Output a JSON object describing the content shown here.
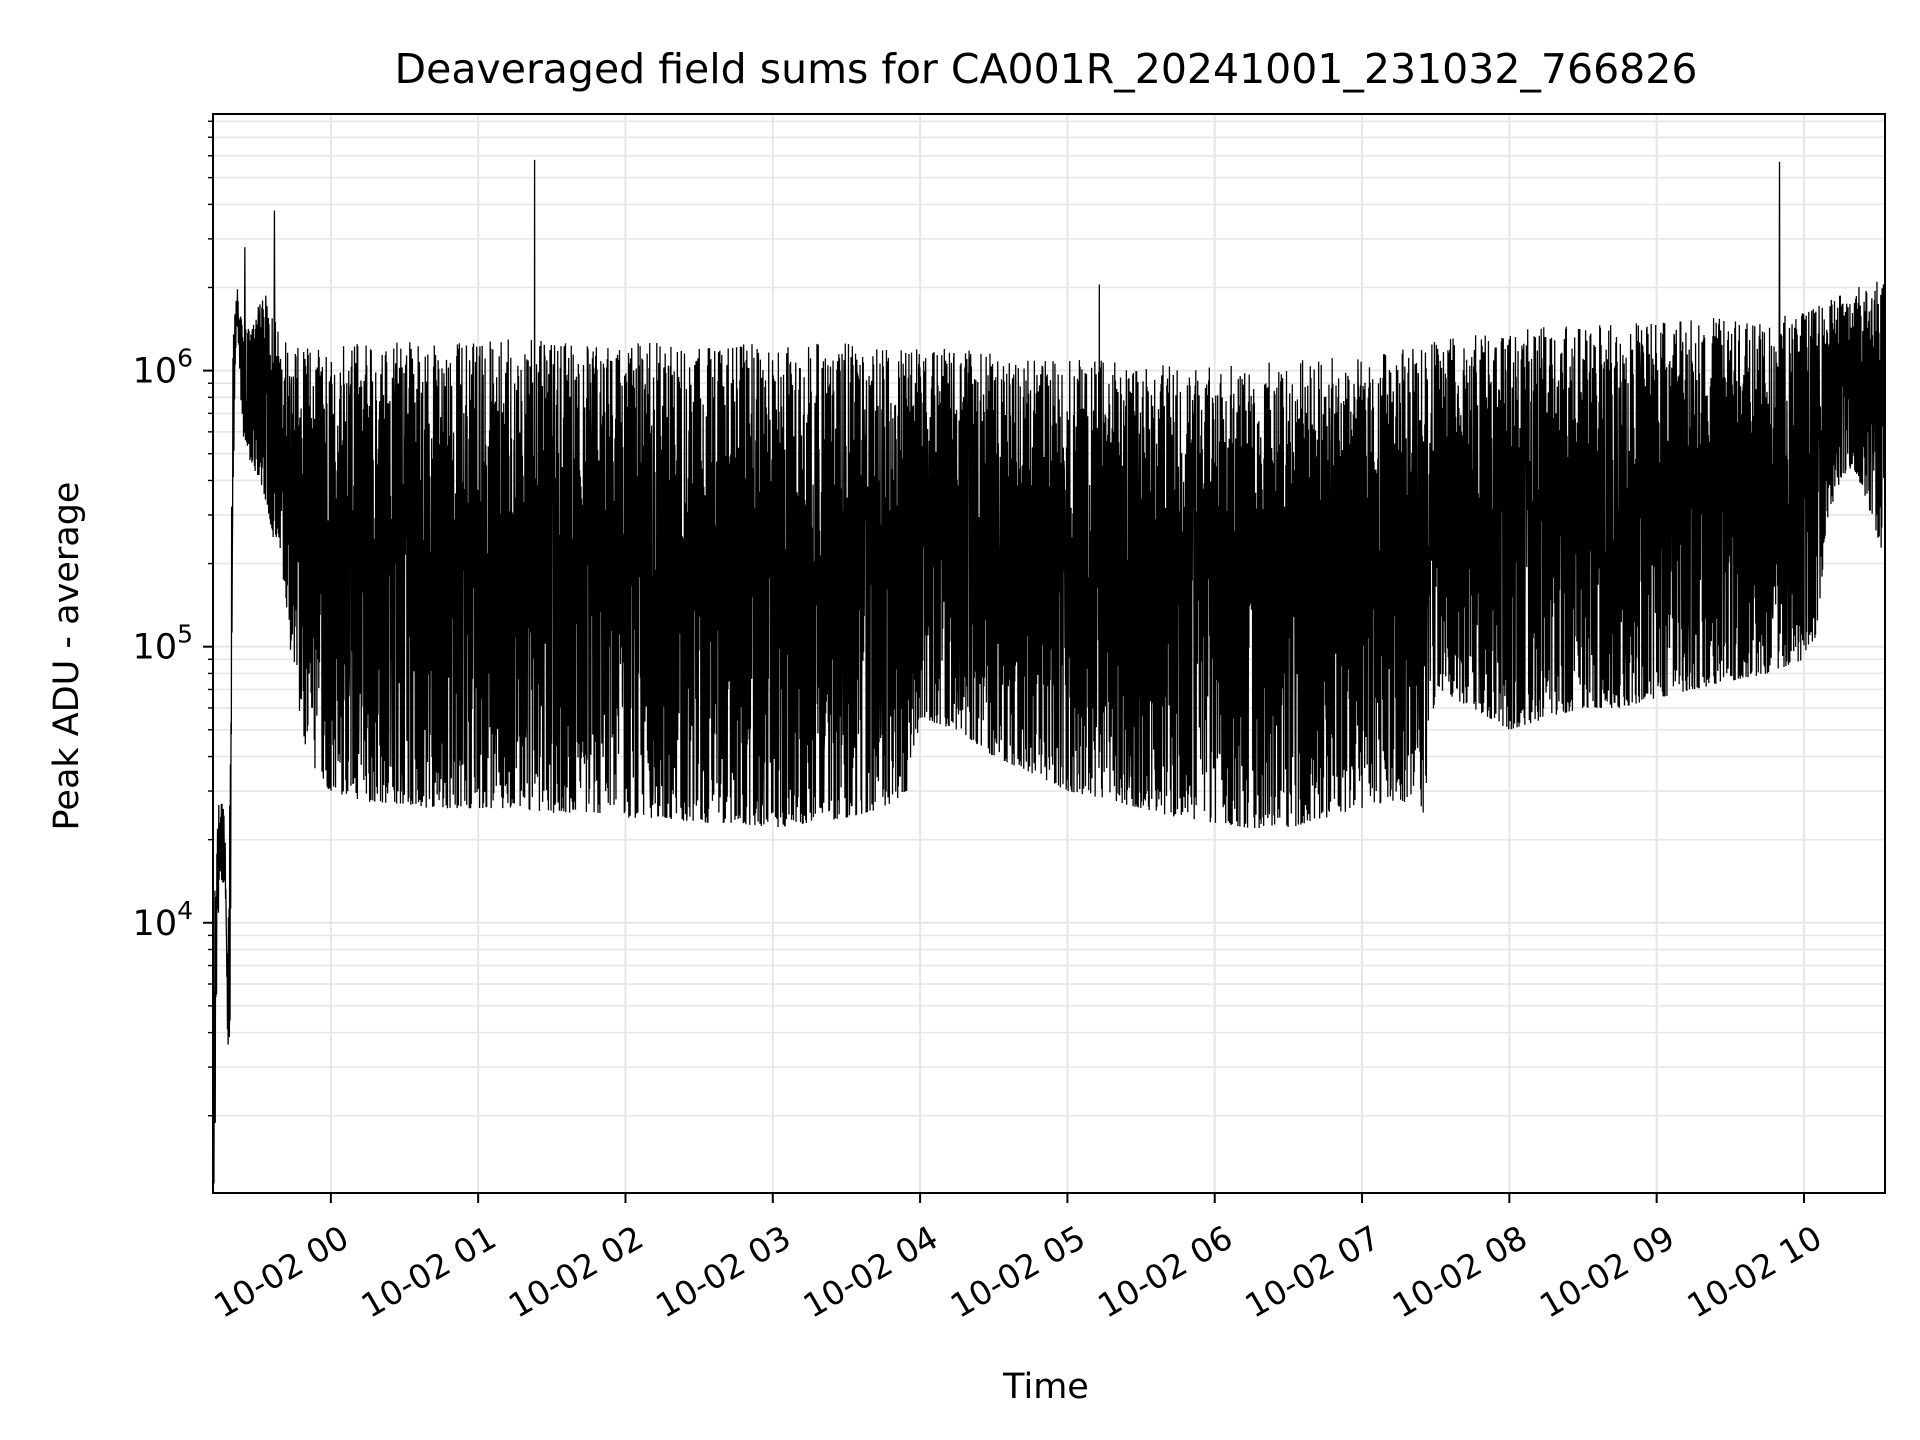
{
  "chart_data": {
    "type": "line",
    "title": "Deaveraged field sums for CA001R_20241001_231032_766826",
    "xlabel": "Time",
    "ylabel": "Peak ADU - average",
    "yscale": "log",
    "grid": true,
    "legend": "none",
    "line_color": "#000000",
    "xlim": [
      "2024-10-01 23:12",
      "2024-10-02 10:33"
    ],
    "ylim": [
      1050,
      8500000
    ],
    "xticks": [
      {
        "time": "2024-10-02 00:00",
        "label": "10-02 00"
      },
      {
        "time": "2024-10-02 01:00",
        "label": "10-02 01"
      },
      {
        "time": "2024-10-02 02:00",
        "label": "10-02 02"
      },
      {
        "time": "2024-10-02 03:00",
        "label": "10-02 03"
      },
      {
        "time": "2024-10-02 04:00",
        "label": "10-02 04"
      },
      {
        "time": "2024-10-02 05:00",
        "label": "10-02 05"
      },
      {
        "time": "2024-10-02 06:00",
        "label": "10-02 06"
      },
      {
        "time": "2024-10-02 07:00",
        "label": "10-02 07"
      },
      {
        "time": "2024-10-02 08:00",
        "label": "10-02 08"
      },
      {
        "time": "2024-10-02 09:00",
        "label": "10-02 09"
      },
      {
        "time": "2024-10-02 10:00",
        "label": "10-02 10"
      }
    ],
    "yticks": [
      {
        "value": 10000,
        "base": "10",
        "exp": "4"
      },
      {
        "value": 100000,
        "base": "10",
        "exp": "5"
      },
      {
        "value": 1000000,
        "base": "10",
        "exp": "6"
      }
    ],
    "series": [
      {
        "x": [
          "2024-10-01 23:12",
          "2024-10-01 23:13",
          "2024-10-01 23:14",
          "2024-10-01 23:15",
          "2024-10-01 23:16",
          "2024-10-01 23:17",
          "2024-10-01 23:18",
          "2024-10-01 23:19",
          "2024-10-01 23:20",
          "2024-10-01 23:21",
          "2024-10-01 23:22",
          "2024-10-01 23:23",
          "2024-10-01 23:24",
          "2024-10-01 23:26",
          "2024-10-01 23:28",
          "2024-10-01 23:30",
          "2024-10-01 23:32",
          "2024-10-01 23:34",
          "2024-10-01 23:36",
          "2024-10-01 23:38",
          "2024-10-01 23:40",
          "2024-10-01 23:42",
          "2024-10-01 23:44",
          "2024-10-01 23:46",
          "2024-10-01 23:48",
          "2024-10-01 23:50",
          "2024-10-01 23:52",
          "2024-10-01 23:54",
          "2024-10-01 23:56",
          "2024-10-01 23:58",
          "2024-10-02 00:00",
          "2024-10-02 00:10",
          "2024-10-02 00:20",
          "2024-10-02 00:30",
          "2024-10-02 00:40",
          "2024-10-02 00:50",
          "2024-10-02 01:00",
          "2024-10-02 01:15",
          "2024-10-02 01:30",
          "2024-10-02 01:45",
          "2024-10-02 02:00",
          "2024-10-02 02:15",
          "2024-10-02 02:30",
          "2024-10-02 02:45",
          "2024-10-02 03:00",
          "2024-10-02 03:15",
          "2024-10-02 03:30",
          "2024-10-02 03:45",
          "2024-10-02 03:55",
          "2024-10-02 04:00",
          "2024-10-02 04:15",
          "2024-10-02 04:30",
          "2024-10-02 04:45",
          "2024-10-02 05:00",
          "2024-10-02 05:15",
          "2024-10-02 05:30",
          "2024-10-02 05:45",
          "2024-10-02 06:00",
          "2024-10-02 06:15",
          "2024-10-02 06:30",
          "2024-10-02 06:45",
          "2024-10-02 07:00",
          "2024-10-02 07:15",
          "2024-10-02 07:25",
          "2024-10-02 07:30",
          "2024-10-02 07:45",
          "2024-10-02 08:00",
          "2024-10-02 08:15",
          "2024-10-02 08:30",
          "2024-10-02 08:45",
          "2024-10-02 09:00",
          "2024-10-02 09:15",
          "2024-10-02 09:30",
          "2024-10-02 09:45",
          "2024-10-02 10:00",
          "2024-10-02 10:05",
          "2024-10-02 10:10",
          "2024-10-02 10:15",
          "2024-10-02 10:20",
          "2024-10-02 10:25",
          "2024-10-02 10:30",
          "2024-10-02 10:33"
        ],
        "lows": [
          1100,
          1150,
          9500,
          13000,
          14000,
          13500,
          3500,
          4000,
          250000,
          1000000,
          1500000,
          900000,
          600000,
          500000,
          450000,
          420000,
          380000,
          320000,
          260000,
          220000,
          180000,
          130000,
          90000,
          70000,
          50000,
          42000,
          38000,
          35000,
          33000,
          31000,
          30000,
          28000,
          27000,
          27000,
          26000,
          26000,
          26000,
          26000,
          25000,
          25000,
          24000,
          24000,
          23000,
          23000,
          22000,
          23000,
          24000,
          26000,
          30000,
          55000,
          50000,
          40000,
          35000,
          30000,
          28000,
          26000,
          24000,
          23000,
          22000,
          22000,
          24000,
          26000,
          28000,
          25000,
          70000,
          60000,
          50000,
          55000,
          60000,
          60000,
          65000,
          70000,
          75000,
          80000,
          90000,
          110000,
          300000,
          400000,
          450000,
          350000,
          250000,
          200000
        ],
        "highs": [
          1200,
          30000,
          28000,
          25000,
          35000,
          20000,
          6000,
          60000,
          1200000,
          1750000,
          2000000,
          1600000,
          1500000,
          1400000,
          1500000,
          1700000,
          1800000,
          1900000,
          1700000,
          1500000,
          1400000,
          1300000,
          1300000,
          1300000,
          1300000,
          1250000,
          1250000,
          1250000,
          1250000,
          1250000,
          1250000,
          1300000,
          1300000,
          1300000,
          1250000,
          1250000,
          1300000,
          1300000,
          1300000,
          1250000,
          1250000,
          1300000,
          1250000,
          1250000,
          1250000,
          1250000,
          1300000,
          1250000,
          1200000,
          1200000,
          1200000,
          1150000,
          1100000,
          1100000,
          1100000,
          1050000,
          1050000,
          1050000,
          1050000,
          1100000,
          1100000,
          1150000,
          1200000,
          1200000,
          1300000,
          1350000,
          1400000,
          1450000,
          1450000,
          1500000,
          1500000,
          1550000,
          1550000,
          1600000,
          1650000,
          1700000,
          1800000,
          1900000,
          2000000,
          2100000,
          2100000,
          2100000
        ],
        "spikes": [
          {
            "time": "2024-10-01 23:25",
            "value": 2800000
          },
          {
            "time": "2024-10-01 23:37",
            "value": 3800000
          },
          {
            "time": "2024-10-02 01:23",
            "value": 5800000
          },
          {
            "time": "2024-10-02 05:13",
            "value": 2050000
          },
          {
            "time": "2024-10-02 09:50",
            "value": 5700000
          }
        ]
      }
    ]
  }
}
